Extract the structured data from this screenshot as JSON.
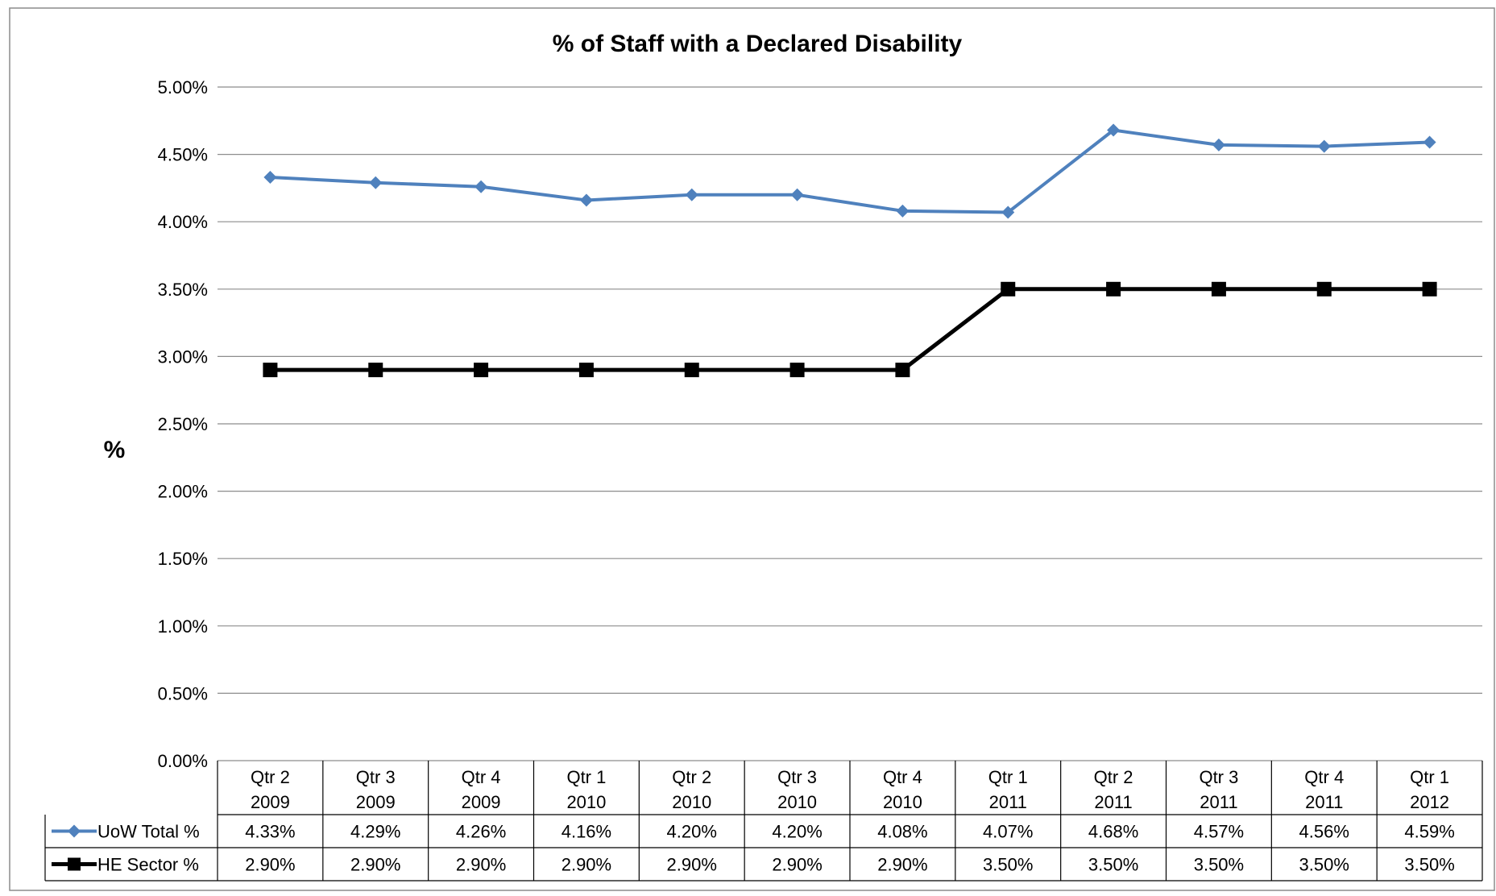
{
  "chart_data": {
    "type": "line",
    "title": "% of Staff with a Declared Disability",
    "xlabel": "",
    "ylabel": "%",
    "ylim": [
      0,
      5
    ],
    "yticks": [
      0,
      0.5,
      1,
      1.5,
      2,
      2.5,
      3,
      3.5,
      4,
      4.5,
      5
    ],
    "ytick_labels": [
      "0.00%",
      "0.50%",
      "1.00%",
      "1.50%",
      "2.00%",
      "2.50%",
      "3.00%",
      "3.50%",
      "4.00%",
      "4.50%",
      "5.00%"
    ],
    "grid": "horizontal",
    "legend": "data-table",
    "categories": [
      [
        "Qtr 2",
        "2009"
      ],
      [
        "Qtr 3",
        "2009"
      ],
      [
        "Qtr 4",
        "2009"
      ],
      [
        "Qtr 1",
        "2010"
      ],
      [
        "Qtr 2",
        "2010"
      ],
      [
        "Qtr 3",
        "2010"
      ],
      [
        "Qtr 4",
        "2010"
      ],
      [
        "Qtr 1",
        "2011"
      ],
      [
        "Qtr 2",
        "2011"
      ],
      [
        "Qtr 3",
        "2011"
      ],
      [
        "Qtr 4",
        "2011"
      ],
      [
        "Qtr 1",
        "2012"
      ]
    ],
    "series": [
      {
        "name": "UoW Total %",
        "color": "#4F81BD",
        "marker": "diamond",
        "values": [
          4.33,
          4.29,
          4.26,
          4.16,
          4.2,
          4.2,
          4.08,
          4.07,
          4.68,
          4.57,
          4.56,
          4.59
        ],
        "labels": [
          "4.33%",
          "4.29%",
          "4.26%",
          "4.16%",
          "4.20%",
          "4.20%",
          "4.08%",
          "4.07%",
          "4.68%",
          "4.57%",
          "4.56%",
          "4.59%"
        ]
      },
      {
        "name": "HE Sector %",
        "color": "#000000",
        "marker": "square",
        "values": [
          2.9,
          2.9,
          2.9,
          2.9,
          2.9,
          2.9,
          2.9,
          3.5,
          3.5,
          3.5,
          3.5,
          3.5
        ],
        "labels": [
          "2.90%",
          "2.90%",
          "2.90%",
          "2.90%",
          "2.90%",
          "2.90%",
          "2.90%",
          "3.50%",
          "3.50%",
          "3.50%",
          "3.50%",
          "3.50%"
        ]
      }
    ]
  }
}
